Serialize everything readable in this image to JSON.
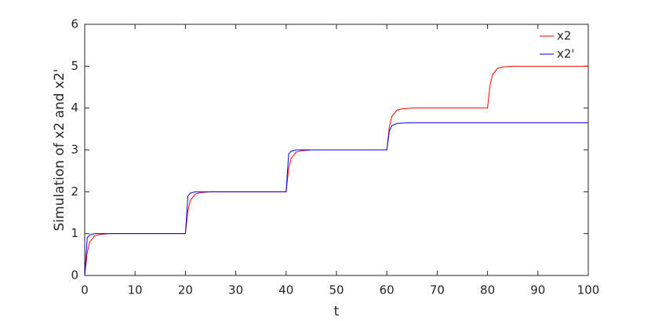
{
  "chart_data": {
    "type": "line",
    "xlabel": "t",
    "ylabel": "Simulation of x2 and x2'",
    "x": [
      0,
      0.5,
      1,
      2,
      3,
      5,
      10,
      20,
      20.5,
      21,
      22,
      23,
      25,
      30,
      40,
      40.5,
      41,
      42,
      43,
      45,
      50,
      60,
      60.5,
      61,
      62,
      63,
      65,
      70,
      80,
      80.5,
      81,
      82,
      83,
      85,
      90,
      100
    ],
    "series": [
      {
        "name": "x2",
        "color": "#ff0000",
        "values": [
          0,
          0.55,
          0.8,
          0.95,
          0.98,
          1,
          1,
          1,
          1.55,
          1.8,
          1.95,
          1.98,
          2,
          2,
          2,
          2.55,
          2.8,
          2.95,
          2.98,
          3,
          3,
          3,
          3.55,
          3.8,
          3.95,
          3.98,
          4,
          4,
          4,
          4.55,
          4.8,
          4.95,
          4.98,
          5,
          5,
          5
        ]
      },
      {
        "name": "x2'",
        "color": "#0000ff",
        "values": [
          0,
          0.9,
          0.97,
          1,
          1,
          1,
          1,
          1,
          1.9,
          1.97,
          2,
          2,
          2,
          2,
          2,
          2.9,
          2.97,
          3,
          3,
          3,
          3,
          3,
          3.45,
          3.58,
          3.63,
          3.64,
          3.65,
          3.65,
          3.65,
          3.65,
          3.65,
          3.65,
          3.65,
          3.65,
          3.65,
          3.65
        ]
      }
    ],
    "xlim": [
      0,
      100
    ],
    "xticks": [
      0,
      10,
      20,
      30,
      40,
      50,
      60,
      70,
      80,
      90,
      100
    ],
    "ylim": [
      0,
      6
    ],
    "yticks": [
      0,
      1,
      2,
      3,
      4,
      5,
      6
    ],
    "legend": "upper right"
  }
}
